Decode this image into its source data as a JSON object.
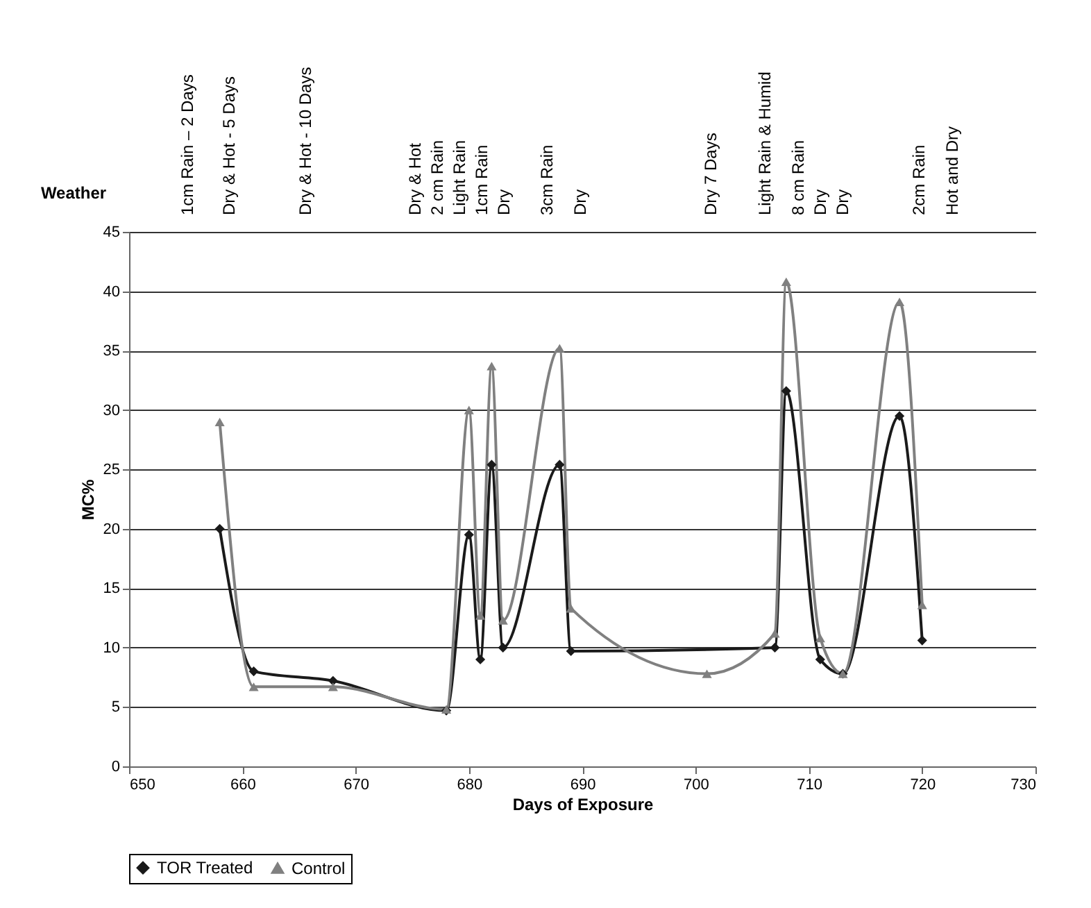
{
  "chart_data": {
    "type": "line",
    "xlabel": "Days of Exposure",
    "ylabel": "MC%",
    "xlim": [
      650,
      730
    ],
    "xticks": [
      650,
      660,
      670,
      680,
      690,
      700,
      710,
      720,
      730
    ],
    "ylim": [
      0,
      45
    ],
    "yticks": [
      0,
      5,
      10,
      15,
      20,
      25,
      30,
      35,
      40,
      45
    ],
    "grid": "y",
    "legend": "bottom",
    "series": [
      {
        "name": "TOR Treated",
        "color": "#1a1a1a",
        "marker": "diamond",
        "x": [
          658,
          661,
          668,
          678,
          680,
          681,
          682,
          683,
          688,
          689,
          707,
          708,
          711,
          713,
          718,
          720
        ],
        "values": [
          20,
          8,
          7.2,
          4.7,
          19.5,
          9,
          25.4,
          10,
          25.4,
          9.7,
          10,
          31.6,
          9,
          7.8,
          29.5,
          10.6
        ]
      },
      {
        "name": "Control",
        "color": "#808080",
        "marker": "triangle",
        "x": [
          658,
          661,
          668,
          678,
          680,
          681,
          682,
          683,
          688,
          689,
          701,
          707,
          708,
          711,
          713,
          718,
          720
        ],
        "values": [
          29,
          6.7,
          6.7,
          4.8,
          30,
          12.7,
          33.7,
          12.3,
          35.2,
          13.3,
          7.8,
          11.2,
          40.8,
          10.8,
          7.8,
          39.1,
          13.6
        ]
      }
    ],
    "annotations": [
      "Weather",
      "1cm Rain – 2 Days",
      "Dry & Hot  - 5 Days",
      "Dry & Hot  - 10 Days",
      "Dry & Hot",
      "2 cm Rain",
      "Light Rain",
      "1cm Rain",
      "Dry",
      "3cm Rain",
      "Dry",
      "Dry 7 Days",
      "Light Rain & Humid",
      "8 cm Rain",
      "Dry",
      "Dry",
      "2cm Rain",
      "Hot and Dry"
    ]
  }
}
